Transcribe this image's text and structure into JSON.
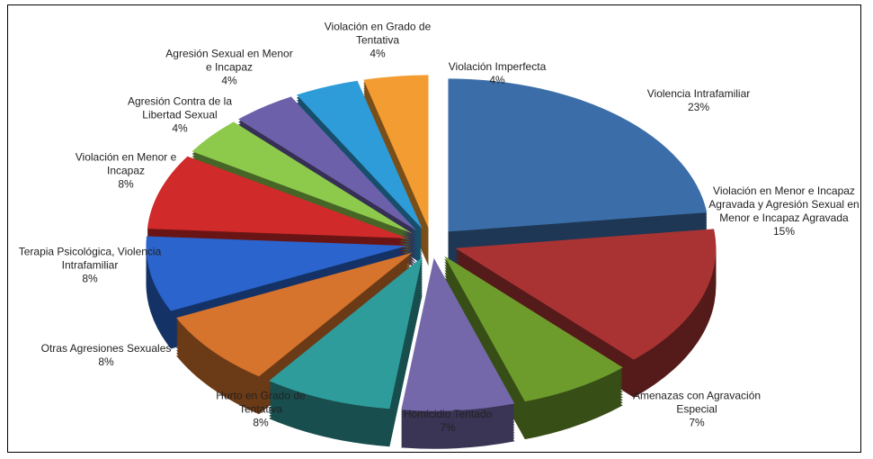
{
  "chart_data": {
    "type": "pie",
    "categories": [
      "Violencia Intrafamiliar",
      "Violación en Menor e Incapaz Agravada y Agresión Sexual en Menor e Incapaz Agravada",
      "Amenazas con Agravación Especial",
      "Homicidio Tentado",
      "Hurto en Grado de Tentativa",
      "Otras Agresiones Sexuales",
      "Terapia Psicológica, Violencia Intrafamiliar",
      "Violación en Menor e Incapaz",
      "Agresión Contra de la Libertad Sexual",
      "Agresión Sexual en Menor e Incapaz",
      "Violación en Grado de Tentativa",
      "Violación Imperfecta"
    ],
    "values": [
      23,
      15,
      7,
      7,
      8,
      8,
      8,
      8,
      4,
      4,
      4,
      4
    ],
    "value_labels": [
      "23%",
      "15%",
      "7%",
      "7%",
      "8%",
      "8%",
      "8%",
      "8%",
      "4%",
      "4%",
      "4%",
      "4%"
    ],
    "colors": [
      "#3b6ea8",
      "#a93333",
      "#6e9c2c",
      "#7468aa",
      "#2f9c9c",
      "#d6732c",
      "#2a64cc",
      "#d12a2a",
      "#8dca4c",
      "#6c60aa",
      "#2e9cd8",
      "#f39c32"
    ]
  }
}
